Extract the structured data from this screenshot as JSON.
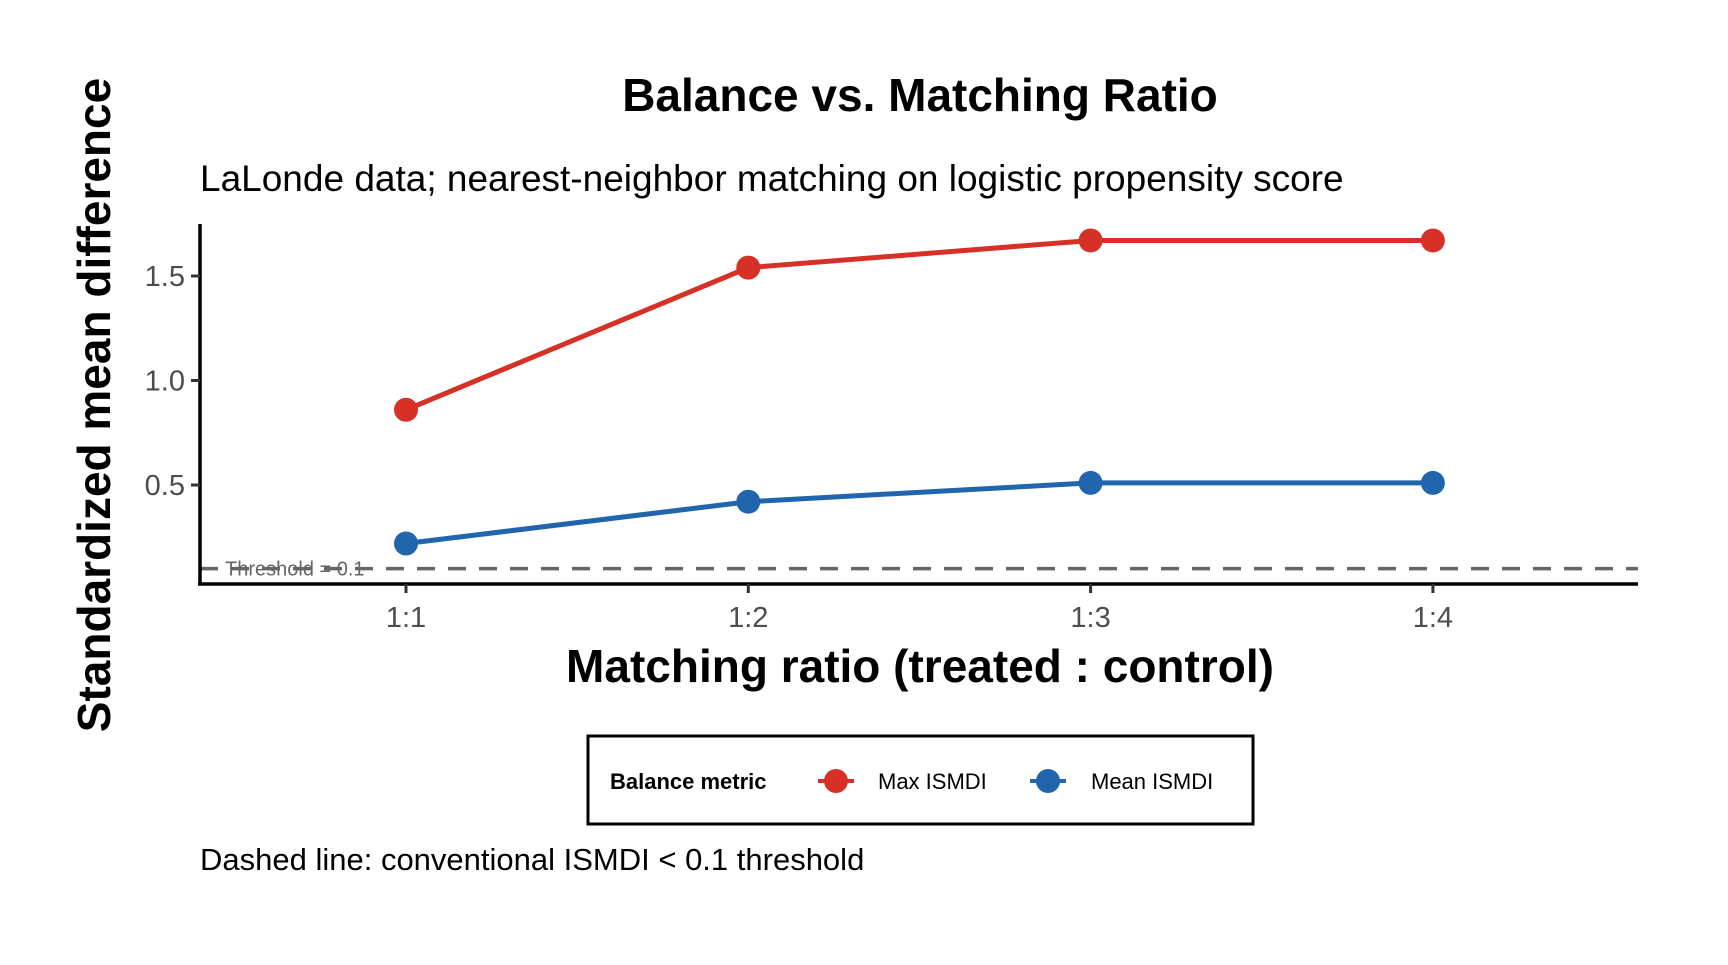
{
  "chart_data": {
    "type": "line",
    "title": "Balance vs. Matching Ratio",
    "subtitle": "LaLonde data; nearest-neighbor matching on logistic propensity score",
    "xlabel": "Matching ratio (treated : control)",
    "ylabel": "Standardized mean difference",
    "caption": "Dashed line: conventional ISMDI < 0.1 threshold",
    "categories": [
      "1:1",
      "1:2",
      "1:3",
      "1:4"
    ],
    "y_ticks": [
      0.5,
      1.0,
      1.5
    ],
    "y_tick_labels": [
      "0.5",
      "1.0",
      "1.5"
    ],
    "ylim": [
      0.06,
      1.74
    ],
    "grid": false,
    "series": [
      {
        "name": "Max ISMDI",
        "color": "#D73027",
        "values": [
          0.86,
          1.54,
          1.67,
          1.67
        ]
      },
      {
        "name": "Mean ISMDI",
        "color": "#2166AC",
        "values": [
          0.22,
          0.42,
          0.51,
          0.51
        ]
      }
    ],
    "threshold": {
      "value": 0.1,
      "label": "Threshold = 0.1",
      "color": "#666666"
    },
    "legend": {
      "title": "Balance metric",
      "placement": "bottom"
    }
  }
}
